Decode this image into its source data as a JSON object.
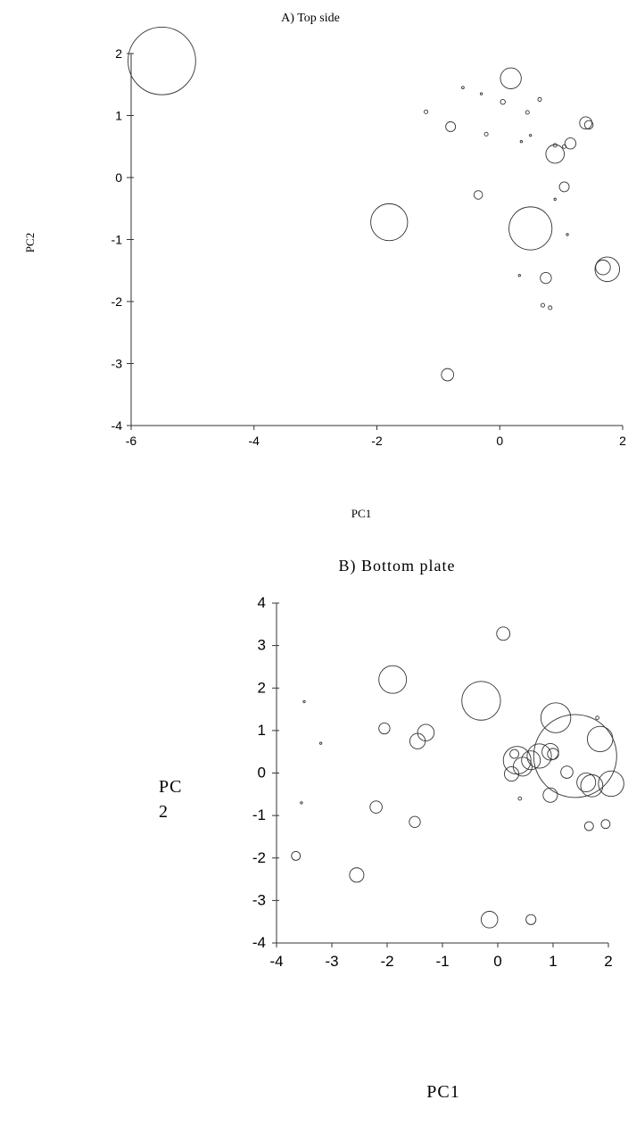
{
  "chart_data": [
    {
      "id": "A",
      "type": "scatter",
      "title": "A) Top side",
      "xlabel": "PC1",
      "ylabel": "PC2",
      "xlim": [
        -6,
        2
      ],
      "ylim": [
        -4,
        2
      ],
      "xticks": [
        "-6",
        "-4",
        "-2",
        "0",
        "2"
      ],
      "yticks": [
        "-4",
        "-3",
        "-2",
        "-1",
        "0",
        "1",
        "2"
      ],
      "grid": false,
      "legend": "none",
      "points": [
        {
          "x": -5.5,
          "y": 1.88,
          "r": 0.55
        },
        {
          "x": -1.8,
          "y": -0.72,
          "r": 0.3
        },
        {
          "x": 0.5,
          "y": -0.82,
          "r": 0.35
        },
        {
          "x": 0.18,
          "y": 1.6,
          "r": 0.17
        },
        {
          "x": 1.75,
          "y": -1.48,
          "r": 0.2
        },
        {
          "x": 1.68,
          "y": -1.45,
          "r": 0.12
        },
        {
          "x": 0.9,
          "y": 0.38,
          "r": 0.15
        },
        {
          "x": 1.4,
          "y": 0.88,
          "r": 0.1
        },
        {
          "x": 1.45,
          "y": 0.85,
          "r": 0.07
        },
        {
          "x": 1.15,
          "y": 0.55,
          "r": 0.09
        },
        {
          "x": 1.05,
          "y": -0.15,
          "r": 0.08
        },
        {
          "x": -0.8,
          "y": 0.82,
          "r": 0.08
        },
        {
          "x": -0.35,
          "y": -0.28,
          "r": 0.07
        },
        {
          "x": 0.75,
          "y": -1.62,
          "r": 0.09
        },
        {
          "x": -0.85,
          "y": -3.18,
          "r": 0.1
        },
        {
          "x": -1.2,
          "y": 1.06,
          "r": 0.03
        },
        {
          "x": -0.6,
          "y": 1.45,
          "r": 0.02
        },
        {
          "x": 0.05,
          "y": 1.22,
          "r": 0.04
        },
        {
          "x": 0.65,
          "y": 1.26,
          "r": 0.03
        },
        {
          "x": 0.45,
          "y": 1.05,
          "r": 0.03
        },
        {
          "x": -0.22,
          "y": 0.7,
          "r": 0.03
        },
        {
          "x": 0.9,
          "y": 0.52,
          "r": 0.03
        },
        {
          "x": 1.05,
          "y": 0.5,
          "r": 0.03
        },
        {
          "x": 0.7,
          "y": -2.06,
          "r": 0.03
        },
        {
          "x": 0.82,
          "y": -2.1,
          "r": 0.03
        },
        {
          "x": 1.1,
          "y": -0.92,
          "r": 0.015
        },
        {
          "x": 0.35,
          "y": 0.58,
          "r": 0.012
        },
        {
          "x": 0.5,
          "y": 0.68,
          "r": 0.012
        },
        {
          "x": 0.32,
          "y": -1.58,
          "r": 0.012
        },
        {
          "x": 0.9,
          "y": -0.35,
          "r": 0.012
        },
        {
          "x": -0.3,
          "y": 1.35,
          "r": 0.01
        }
      ]
    },
    {
      "id": "B",
      "type": "scatter",
      "title": "B) Bottom plate",
      "xlabel": "PC1",
      "ylabel": "PC 2",
      "xlim": [
        -4,
        2
      ],
      "ylim": [
        -4,
        4
      ],
      "xticks": [
        "-4",
        "-3",
        "-2",
        "-1",
        "0",
        "1",
        "2"
      ],
      "yticks": [
        "-4",
        "-3",
        "-2",
        "-1",
        "0",
        "1",
        "2",
        "3",
        "4"
      ],
      "grid": false,
      "legend": "none",
      "points": [
        {
          "x": 1.4,
          "y": 0.4,
          "r": 0.75
        },
        {
          "x": -0.3,
          "y": 1.7,
          "r": 0.35
        },
        {
          "x": -1.9,
          "y": 2.2,
          "r": 0.25
        },
        {
          "x": 1.05,
          "y": 1.3,
          "r": 0.27
        },
        {
          "x": 1.85,
          "y": 0.8,
          "r": 0.23
        },
        {
          "x": 2.05,
          "y": -0.25,
          "r": 0.23
        },
        {
          "x": 1.7,
          "y": -0.3,
          "r": 0.2
        },
        {
          "x": 1.6,
          "y": -0.22,
          "r": 0.17
        },
        {
          "x": 0.35,
          "y": 0.3,
          "r": 0.25
        },
        {
          "x": 0.75,
          "y": 0.4,
          "r": 0.22
        },
        {
          "x": 0.45,
          "y": 0.15,
          "r": 0.17
        },
        {
          "x": 0.6,
          "y": 0.3,
          "r": 0.17
        },
        {
          "x": 0.95,
          "y": 0.5,
          "r": 0.15
        },
        {
          "x": 1.0,
          "y": 0.45,
          "r": 0.1
        },
        {
          "x": -1.3,
          "y": 0.95,
          "r": 0.15
        },
        {
          "x": -1.45,
          "y": 0.75,
          "r": 0.14
        },
        {
          "x": 0.1,
          "y": 3.28,
          "r": 0.12
        },
        {
          "x": 0.25,
          "y": -0.02,
          "r": 0.13
        },
        {
          "x": 0.3,
          "y": 0.45,
          "r": 0.08
        },
        {
          "x": 0.95,
          "y": -0.52,
          "r": 0.13
        },
        {
          "x": 1.25,
          "y": 0.02,
          "r": 0.11
        },
        {
          "x": -2.05,
          "y": 1.05,
          "r": 0.1
        },
        {
          "x": -2.2,
          "y": -0.8,
          "r": 0.11
        },
        {
          "x": -1.5,
          "y": -1.15,
          "r": 0.1
        },
        {
          "x": -2.55,
          "y": -2.4,
          "r": 0.13
        },
        {
          "x": -3.65,
          "y": -1.95,
          "r": 0.08
        },
        {
          "x": -0.15,
          "y": -3.45,
          "r": 0.15
        },
        {
          "x": 0.6,
          "y": -3.45,
          "r": 0.09
        },
        {
          "x": 1.65,
          "y": -1.25,
          "r": 0.08
        },
        {
          "x": 1.95,
          "y": -1.2,
          "r": 0.08
        },
        {
          "x": 1.8,
          "y": 1.3,
          "r": 0.03
        },
        {
          "x": 0.4,
          "y": -0.6,
          "r": 0.03
        },
        {
          "x": -3.5,
          "y": 1.68,
          "r": 0.012
        },
        {
          "x": -3.2,
          "y": 0.7,
          "r": 0.012
        },
        {
          "x": -3.55,
          "y": -0.7,
          "r": 0.012
        }
      ]
    }
  ]
}
